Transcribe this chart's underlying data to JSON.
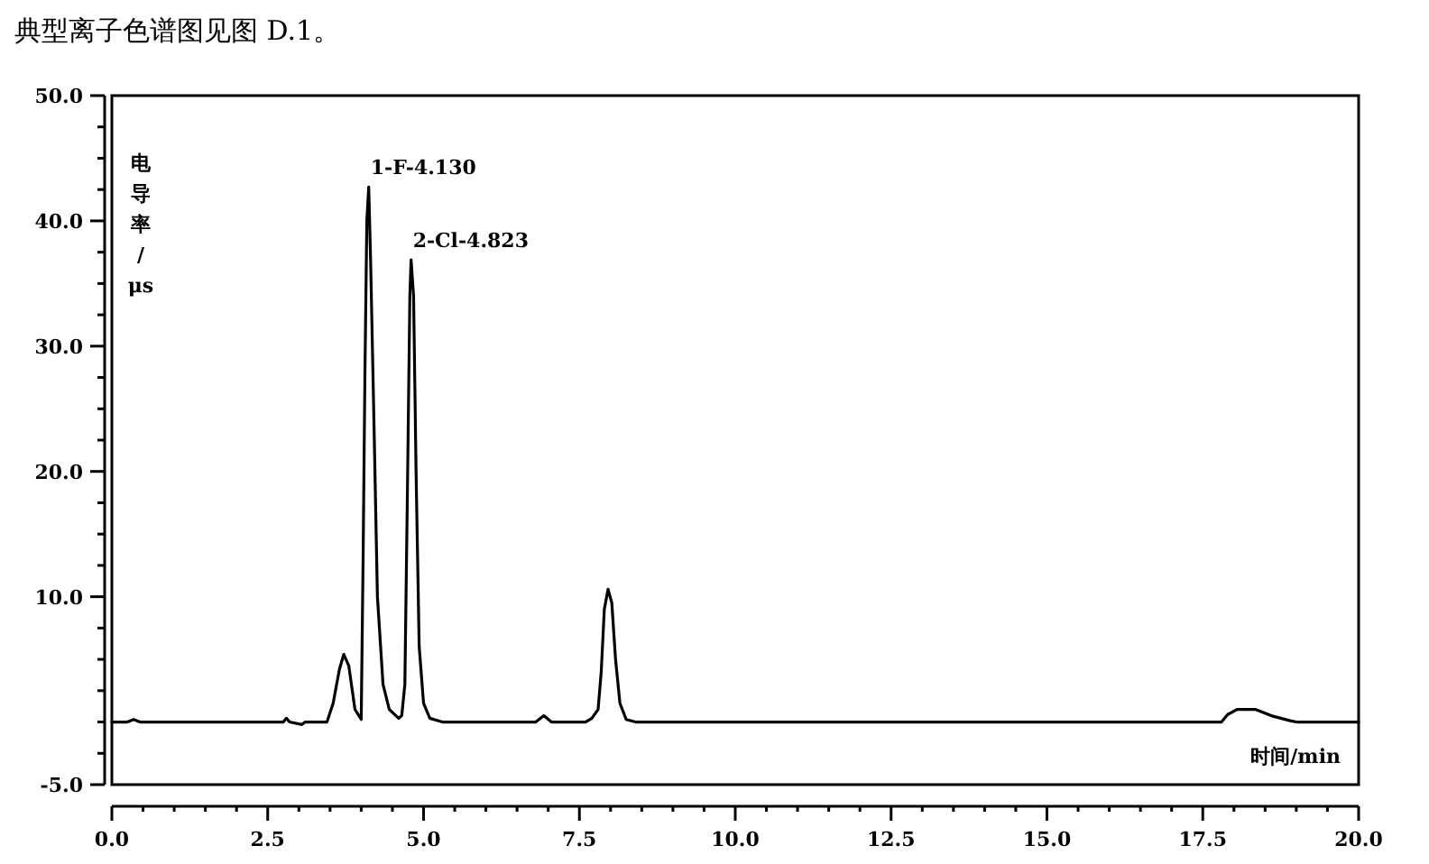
{
  "chart_data": {
    "type": "line",
    "title": "典型离子色谱图见图 D.1。",
    "xlabel": "时间/min",
    "ylabel": "电导率/μs",
    "xlim": [
      0,
      20
    ],
    "ylim": [
      -5,
      50
    ],
    "xticks": [
      {
        "value": 0,
        "label": "0.0"
      },
      {
        "value": 0.5,
        "label": null
      },
      {
        "value": 1,
        "label": null
      },
      {
        "value": 1.5,
        "label": null
      },
      {
        "value": 2,
        "label": null
      },
      {
        "value": 2.5,
        "label": "2.5"
      },
      {
        "value": 3,
        "label": null
      },
      {
        "value": 3.5,
        "label": null
      },
      {
        "value": 4,
        "label": null
      },
      {
        "value": 4.5,
        "label": null
      },
      {
        "value": 5,
        "label": "5.0"
      },
      {
        "value": 5.5,
        "label": null
      },
      {
        "value": 6,
        "label": null
      },
      {
        "value": 6.5,
        "label": null
      },
      {
        "value": 7,
        "label": null
      },
      {
        "value": 7.5,
        "label": "7.5"
      },
      {
        "value": 8,
        "label": null
      },
      {
        "value": 8.5,
        "label": null
      },
      {
        "value": 9,
        "label": null
      },
      {
        "value": 9.5,
        "label": null
      },
      {
        "value": 10,
        "label": "10.0"
      },
      {
        "value": 10.5,
        "label": null
      },
      {
        "value": 11,
        "label": null
      },
      {
        "value": 11.5,
        "label": null
      },
      {
        "value": 12,
        "label": null
      },
      {
        "value": 12.5,
        "label": "12.5"
      },
      {
        "value": 13,
        "label": null
      },
      {
        "value": 13.5,
        "label": null
      },
      {
        "value": 14,
        "label": null
      },
      {
        "value": 14.5,
        "label": null
      },
      {
        "value": 15,
        "label": "15.0"
      },
      {
        "value": 15.5,
        "label": null
      },
      {
        "value": 16,
        "label": null
      },
      {
        "value": 16.5,
        "label": null
      },
      {
        "value": 17,
        "label": null
      },
      {
        "value": 17.5,
        "label": "17.5"
      },
      {
        "value": 18,
        "label": null
      },
      {
        "value": 18.5,
        "label": null
      },
      {
        "value": 19,
        "label": null
      },
      {
        "value": 19.5,
        "label": null
      },
      {
        "value": 20,
        "label": "20.0"
      }
    ],
    "yticks": [
      {
        "value": 50,
        "label": "50.0"
      },
      {
        "value": 47.5,
        "label": null
      },
      {
        "value": 45,
        "label": null
      },
      {
        "value": 42.5,
        "label": null
      },
      {
        "value": 40,
        "label": "40.0"
      },
      {
        "value": 37.5,
        "label": null
      },
      {
        "value": 35,
        "label": null
      },
      {
        "value": 32.5,
        "label": null
      },
      {
        "value": 30,
        "label": "30.0"
      },
      {
        "value": 27.5,
        "label": null
      },
      {
        "value": 25,
        "label": null
      },
      {
        "value": 22.5,
        "label": null
      },
      {
        "value": 20,
        "label": "20.0"
      },
      {
        "value": 17.5,
        "label": null
      },
      {
        "value": 15,
        "label": null
      },
      {
        "value": 12.5,
        "label": null
      },
      {
        "value": 10,
        "label": "10.0"
      },
      {
        "value": 7.5,
        "label": null
      },
      {
        "value": 5,
        "label": null
      },
      {
        "value": 2.5,
        "label": null
      },
      {
        "value": 0,
        "label": null
      },
      {
        "value": -2.5,
        "label": null
      },
      {
        "value": -5,
        "label": "-5.0"
      }
    ],
    "grid": false,
    "marker": "none",
    "line_style": "solid",
    "series": [
      {
        "color": "#000000",
        "x": [
          0,
          0.25,
          0.35,
          0.45,
          2.75,
          2.8,
          2.85,
          3.05,
          3.1,
          3.45,
          3.55,
          3.65,
          3.72,
          3.8,
          3.9,
          4.0,
          4.03,
          4.06,
          4.09,
          4.12,
          4.15,
          4.2,
          4.26,
          4.35,
          4.45,
          4.6,
          4.65,
          4.7,
          4.74,
          4.78,
          4.8,
          4.84,
          4.88,
          4.93,
          5.0,
          5.1,
          5.3,
          6.8,
          6.93,
          7.05,
          7.6,
          7.7,
          7.8,
          7.85,
          7.9,
          7.96,
          8.02,
          8.08,
          8.15,
          8.25,
          8.4,
          9.7,
          17.8,
          17.9,
          18.05,
          18.35,
          18.6,
          18.9,
          19.0,
          20.0
        ],
        "values": [
          0,
          0,
          0.2,
          0,
          0,
          0.3,
          0,
          -0.2,
          0,
          0,
          1.5,
          4.2,
          5.4,
          4.5,
          1.0,
          0.2,
          13,
          28,
          40,
          42.7,
          37,
          25,
          10,
          3,
          1.0,
          0.3,
          0.5,
          3,
          18,
          34,
          36.9,
          34,
          20,
          6,
          1.5,
          0.3,
          0,
          0,
          0.5,
          0,
          0,
          0.3,
          1,
          4,
          9,
          10.6,
          9.5,
          5,
          1.5,
          0.2,
          0,
          0,
          0,
          0.6,
          1.0,
          1.0,
          0.5,
          0.1,
          0,
          0
        ]
      }
    ],
    "annotations": [
      {
        "text": "1-F-4.130",
        "x": 4.12,
        "y": 42.7
      },
      {
        "text": "2-Cl-4.823",
        "x": 4.8,
        "y": 36.9
      }
    ]
  }
}
